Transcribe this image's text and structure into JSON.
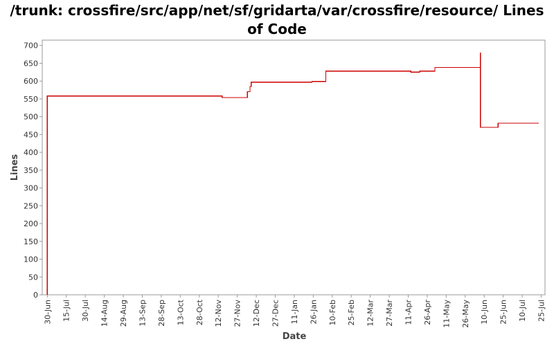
{
  "chart_data": {
    "type": "line",
    "title": "/trunk: crossfire/src/app/net/sf/gridarta/var/crossfire/resource/ Lines of Code",
    "xlabel": "Date",
    "ylabel": "Lines",
    "ylim": [
      0,
      715
    ],
    "xlim": [
      "2008-06-26",
      "2009-07-28"
    ],
    "yticks": [
      0,
      50,
      100,
      150,
      200,
      250,
      300,
      350,
      400,
      450,
      500,
      550,
      600,
      650,
      700
    ],
    "xticks": [
      {
        "date": "2008-06-30",
        "label": "30-Jun"
      },
      {
        "date": "2008-07-15",
        "label": "15-Jul"
      },
      {
        "date": "2008-07-30",
        "label": "30-Jul"
      },
      {
        "date": "2008-08-14",
        "label": "14-Aug"
      },
      {
        "date": "2008-08-29",
        "label": "29-Aug"
      },
      {
        "date": "2008-09-13",
        "label": "13-Sep"
      },
      {
        "date": "2008-09-28",
        "label": "28-Sep"
      },
      {
        "date": "2008-10-13",
        "label": "13-Oct"
      },
      {
        "date": "2008-10-28",
        "label": "28-Oct"
      },
      {
        "date": "2008-11-12",
        "label": "12-Nov"
      },
      {
        "date": "2008-11-27",
        "label": "27-Nov"
      },
      {
        "date": "2008-12-12",
        "label": "12-Dec"
      },
      {
        "date": "2008-12-27",
        "label": "27-Dec"
      },
      {
        "date": "2009-01-11",
        "label": "11-Jan"
      },
      {
        "date": "2009-01-26",
        "label": "26-Jan"
      },
      {
        "date": "2009-02-10",
        "label": "10-Feb"
      },
      {
        "date": "2009-02-25",
        "label": "25-Feb"
      },
      {
        "date": "2009-03-12",
        "label": "12-Mar"
      },
      {
        "date": "2009-03-27",
        "label": "27-Mar"
      },
      {
        "date": "2009-04-11",
        "label": "11-Apr"
      },
      {
        "date": "2009-04-26",
        "label": "26-Apr"
      },
      {
        "date": "2009-05-11",
        "label": "11-May"
      },
      {
        "date": "2009-05-26",
        "label": "26-May"
      },
      {
        "date": "2009-06-10",
        "label": "10-Jun"
      },
      {
        "date": "2009-06-25",
        "label": "25-Jun"
      },
      {
        "date": "2009-07-10",
        "label": "10-Jul"
      },
      {
        "date": "2009-07-25",
        "label": "25-Jul"
      }
    ],
    "grid": false,
    "step": true,
    "series": [
      {
        "color": "#cc0000",
        "points": [
          {
            "x": "2008-06-30",
            "y": 0
          },
          {
            "x": "2008-06-30",
            "y": 558
          },
          {
            "x": "2008-11-15",
            "y": 554
          },
          {
            "x": "2008-12-05",
            "y": 570
          },
          {
            "x": "2008-12-07",
            "y": 585
          },
          {
            "x": "2008-12-08",
            "y": 597
          },
          {
            "x": "2009-01-25",
            "y": 599
          },
          {
            "x": "2009-02-05",
            "y": 628
          },
          {
            "x": "2009-04-13",
            "y": 625
          },
          {
            "x": "2009-04-20",
            "y": 628
          },
          {
            "x": "2009-05-02",
            "y": 638
          },
          {
            "x": "2009-06-07",
            "y": 680
          },
          {
            "x": "2009-06-07",
            "y": 470
          },
          {
            "x": "2009-06-21",
            "y": 482
          },
          {
            "x": "2009-07-23",
            "y": 482
          }
        ]
      }
    ]
  }
}
